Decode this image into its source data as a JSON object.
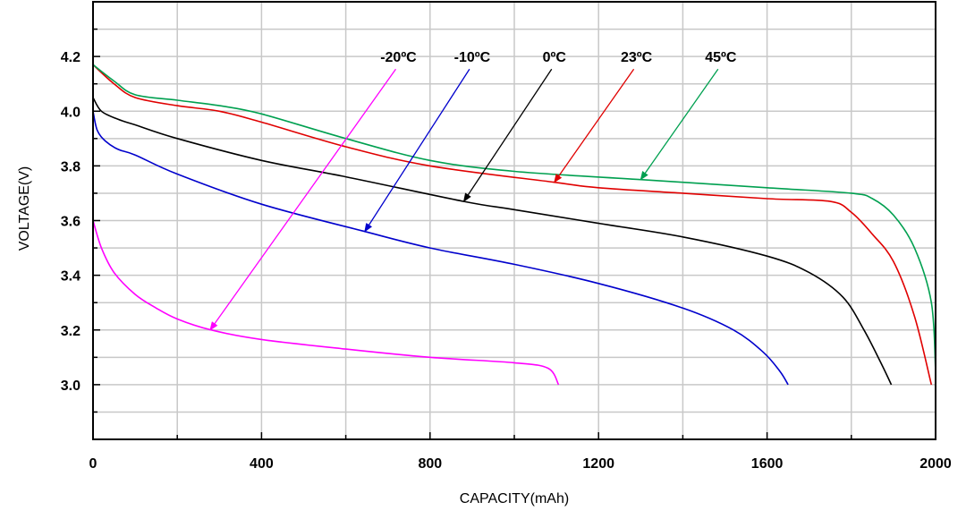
{
  "chart_data": {
    "type": "line",
    "xlabel": "CAPACITY(mAh)",
    "ylabel": "VOLTAGE(V)",
    "xlim": [
      0,
      2000
    ],
    "ylim": [
      2.8,
      4.4
    ],
    "x_ticks": [
      0,
      400,
      800,
      1200,
      1600,
      2000
    ],
    "x_tick_labels": [
      "0",
      "400",
      "800",
      "1200",
      "1600",
      "2000"
    ],
    "y_ticks": [
      3.0,
      3.2,
      3.4,
      3.6,
      3.8,
      4.0,
      4.2
    ],
    "y_tick_labels": [
      "3.0",
      "3.2",
      "3.4",
      "3.6",
      "3.8",
      "4.0",
      "4.2"
    ],
    "grid": true,
    "series": [
      {
        "name": "-20ºC",
        "color": "#ff00ff",
        "label_at": [
          725,
          4.18
        ],
        "arrow_to": [
          278,
          3.2
        ],
        "x": [
          0,
          20,
          50,
          100,
          150,
          200,
          280,
          400,
          600,
          800,
          1000,
          1080,
          1105
        ],
        "y": [
          3.6,
          3.5,
          3.41,
          3.33,
          3.28,
          3.24,
          3.2,
          3.165,
          3.13,
          3.1,
          3.08,
          3.06,
          3.0
        ]
      },
      {
        "name": "-10ºC",
        "color": "#0000cc",
        "label_at": [
          900,
          4.18
        ],
        "arrow_to": [
          645,
          3.56
        ],
        "x": [
          0,
          10,
          30,
          60,
          100,
          200,
          400,
          645,
          800,
          1000,
          1200,
          1400,
          1520,
          1590,
          1630,
          1650
        ],
        "y": [
          4.0,
          3.93,
          3.89,
          3.86,
          3.84,
          3.77,
          3.66,
          3.56,
          3.5,
          3.44,
          3.37,
          3.28,
          3.2,
          3.12,
          3.05,
          3.0
        ]
      },
      {
        "name": "0ºC",
        "color": "#000000",
        "label_at": [
          1095,
          4.18
        ],
        "arrow_to": [
          880,
          3.67
        ],
        "x": [
          0,
          20,
          60,
          100,
          200,
          400,
          600,
          880,
          1000,
          1200,
          1400,
          1600,
          1700,
          1780,
          1830,
          1870,
          1895
        ],
        "y": [
          4.05,
          4.0,
          3.97,
          3.95,
          3.9,
          3.82,
          3.76,
          3.67,
          3.64,
          3.59,
          3.54,
          3.47,
          3.41,
          3.32,
          3.2,
          3.08,
          3.0
        ]
      },
      {
        "name": "23ºC",
        "color": "#e00000",
        "label_at": [
          1290,
          4.18
        ],
        "arrow_to": [
          1095,
          3.74
        ],
        "x": [
          0,
          50,
          100,
          200,
          300,
          400,
          600,
          800,
          1095,
          1200,
          1400,
          1600,
          1750,
          1800,
          1850,
          1900,
          1950,
          1990
        ],
        "y": [
          4.17,
          4.1,
          4.05,
          4.02,
          4.0,
          3.96,
          3.87,
          3.8,
          3.74,
          3.72,
          3.7,
          3.68,
          3.67,
          3.63,
          3.55,
          3.45,
          3.25,
          3.0
        ]
      },
      {
        "name": "45ºC",
        "color": "#00a050",
        "label_at": [
          1490,
          4.18
        ],
        "arrow_to": [
          1300,
          3.75
        ],
        "x": [
          0,
          50,
          100,
          200,
          300,
          400,
          600,
          800,
          1000,
          1300,
          1600,
          1800,
          1850,
          1900,
          1950,
          1990,
          2000
        ],
        "y": [
          4.17,
          4.11,
          4.06,
          4.04,
          4.02,
          3.99,
          3.9,
          3.82,
          3.78,
          3.75,
          3.72,
          3.7,
          3.68,
          3.62,
          3.5,
          3.3,
          3.05
        ]
      }
    ]
  }
}
